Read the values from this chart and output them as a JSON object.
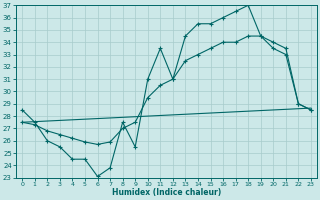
{
  "bg_color": "#cce8e8",
  "grid_color": "#a8cccc",
  "line_color": "#006666",
  "xlabel": "Humidex (Indice chaleur)",
  "xlim": [
    -0.5,
    23.5
  ],
  "ylim": [
    23,
    37
  ],
  "xticks": [
    0,
    1,
    2,
    3,
    4,
    5,
    6,
    7,
    8,
    9,
    10,
    11,
    12,
    13,
    14,
    15,
    16,
    17,
    18,
    19,
    20,
    21,
    22,
    23
  ],
  "yticks": [
    23,
    24,
    25,
    26,
    27,
    28,
    29,
    30,
    31,
    32,
    33,
    34,
    35,
    36,
    37
  ],
  "line_jagged_x": [
    0,
    1,
    2,
    3,
    4,
    5,
    6,
    7,
    8,
    9,
    10,
    11,
    12,
    13,
    14,
    15,
    16,
    17,
    18,
    19,
    20,
    21,
    22,
    23
  ],
  "line_jagged_y": [
    28.5,
    27.5,
    26.0,
    25.5,
    24.5,
    24.5,
    23.1,
    23.8,
    27.5,
    25.5,
    31.0,
    33.5,
    31.0,
    34.5,
    35.5,
    35.5,
    36.0,
    36.5,
    37.0,
    34.5,
    33.5,
    33.0,
    29.0,
    28.5
  ],
  "line_middle_x": [
    0,
    1,
    2,
    3,
    4,
    5,
    6,
    7,
    8,
    9,
    10,
    11,
    12,
    13,
    14,
    15,
    16,
    17,
    18,
    19,
    20,
    21,
    22,
    23
  ],
  "line_middle_y": [
    27.5,
    27.3,
    26.8,
    26.5,
    26.2,
    25.9,
    25.7,
    25.9,
    27.0,
    27.5,
    29.5,
    30.5,
    31.0,
    32.5,
    33.0,
    33.5,
    34.0,
    34.0,
    34.5,
    34.5,
    34.0,
    33.5,
    29.0,
    28.5
  ],
  "line_flat_x": [
    0,
    1,
    2,
    3,
    4,
    5,
    6,
    7,
    8,
    9,
    10,
    11,
    12,
    13,
    14,
    15,
    16,
    17,
    18,
    19,
    20,
    21,
    22,
    23
  ],
  "line_flat_y": [
    27.5,
    27.55,
    27.6,
    27.65,
    27.7,
    27.75,
    27.8,
    27.85,
    27.9,
    27.95,
    28.0,
    28.05,
    28.1,
    28.15,
    28.2,
    28.25,
    28.3,
    28.35,
    28.4,
    28.45,
    28.5,
    28.55,
    28.6,
    28.65
  ]
}
